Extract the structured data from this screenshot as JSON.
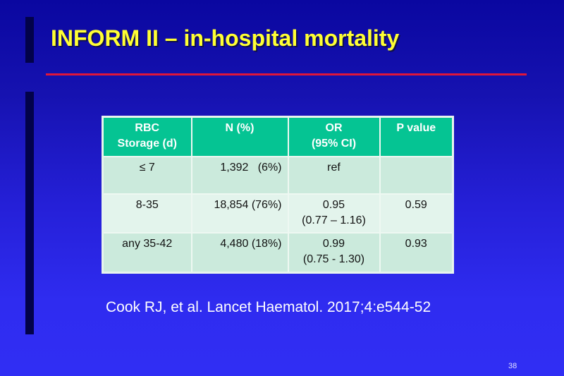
{
  "slide": {
    "title": "INFORM II – in-hospital mortality",
    "page_number": "38",
    "citation": "Cook RJ, et al. Lancet Haematol. 2017;4:e544-52",
    "colors": {
      "background_top": "#0a07a0",
      "background_bottom": "#302ef4",
      "title": "#ffff33",
      "rule": "#e0163a",
      "header_fill": "#05c493",
      "row_fill_dark": "#cbeadc",
      "row_fill_light": "#e3f4ec"
    }
  },
  "table": {
    "headers": [
      {
        "line1": "RBC",
        "line2": "Storage (d)"
      },
      {
        "line1": "N (%)",
        "line2": ""
      },
      {
        "line1": "OR",
        "line2": "(95% CI)"
      },
      {
        "line1": "P value",
        "line2": ""
      }
    ],
    "rows": [
      {
        "storage": "≤ 7",
        "n_pct": "1,392   (6%)",
        "or": "ref",
        "or_ci": "",
        "p": ""
      },
      {
        "storage": "8-35",
        "n_pct": "18,854 (76%)",
        "or": "0.95",
        "or_ci": "(0.77 – 1.16)",
        "p": "0.59"
      },
      {
        "storage": "any 35-42",
        "n_pct": "4,480 (18%)",
        "or": "0.99",
        "or_ci": "(0.75 - 1.30)",
        "p": "0.93"
      }
    ]
  }
}
